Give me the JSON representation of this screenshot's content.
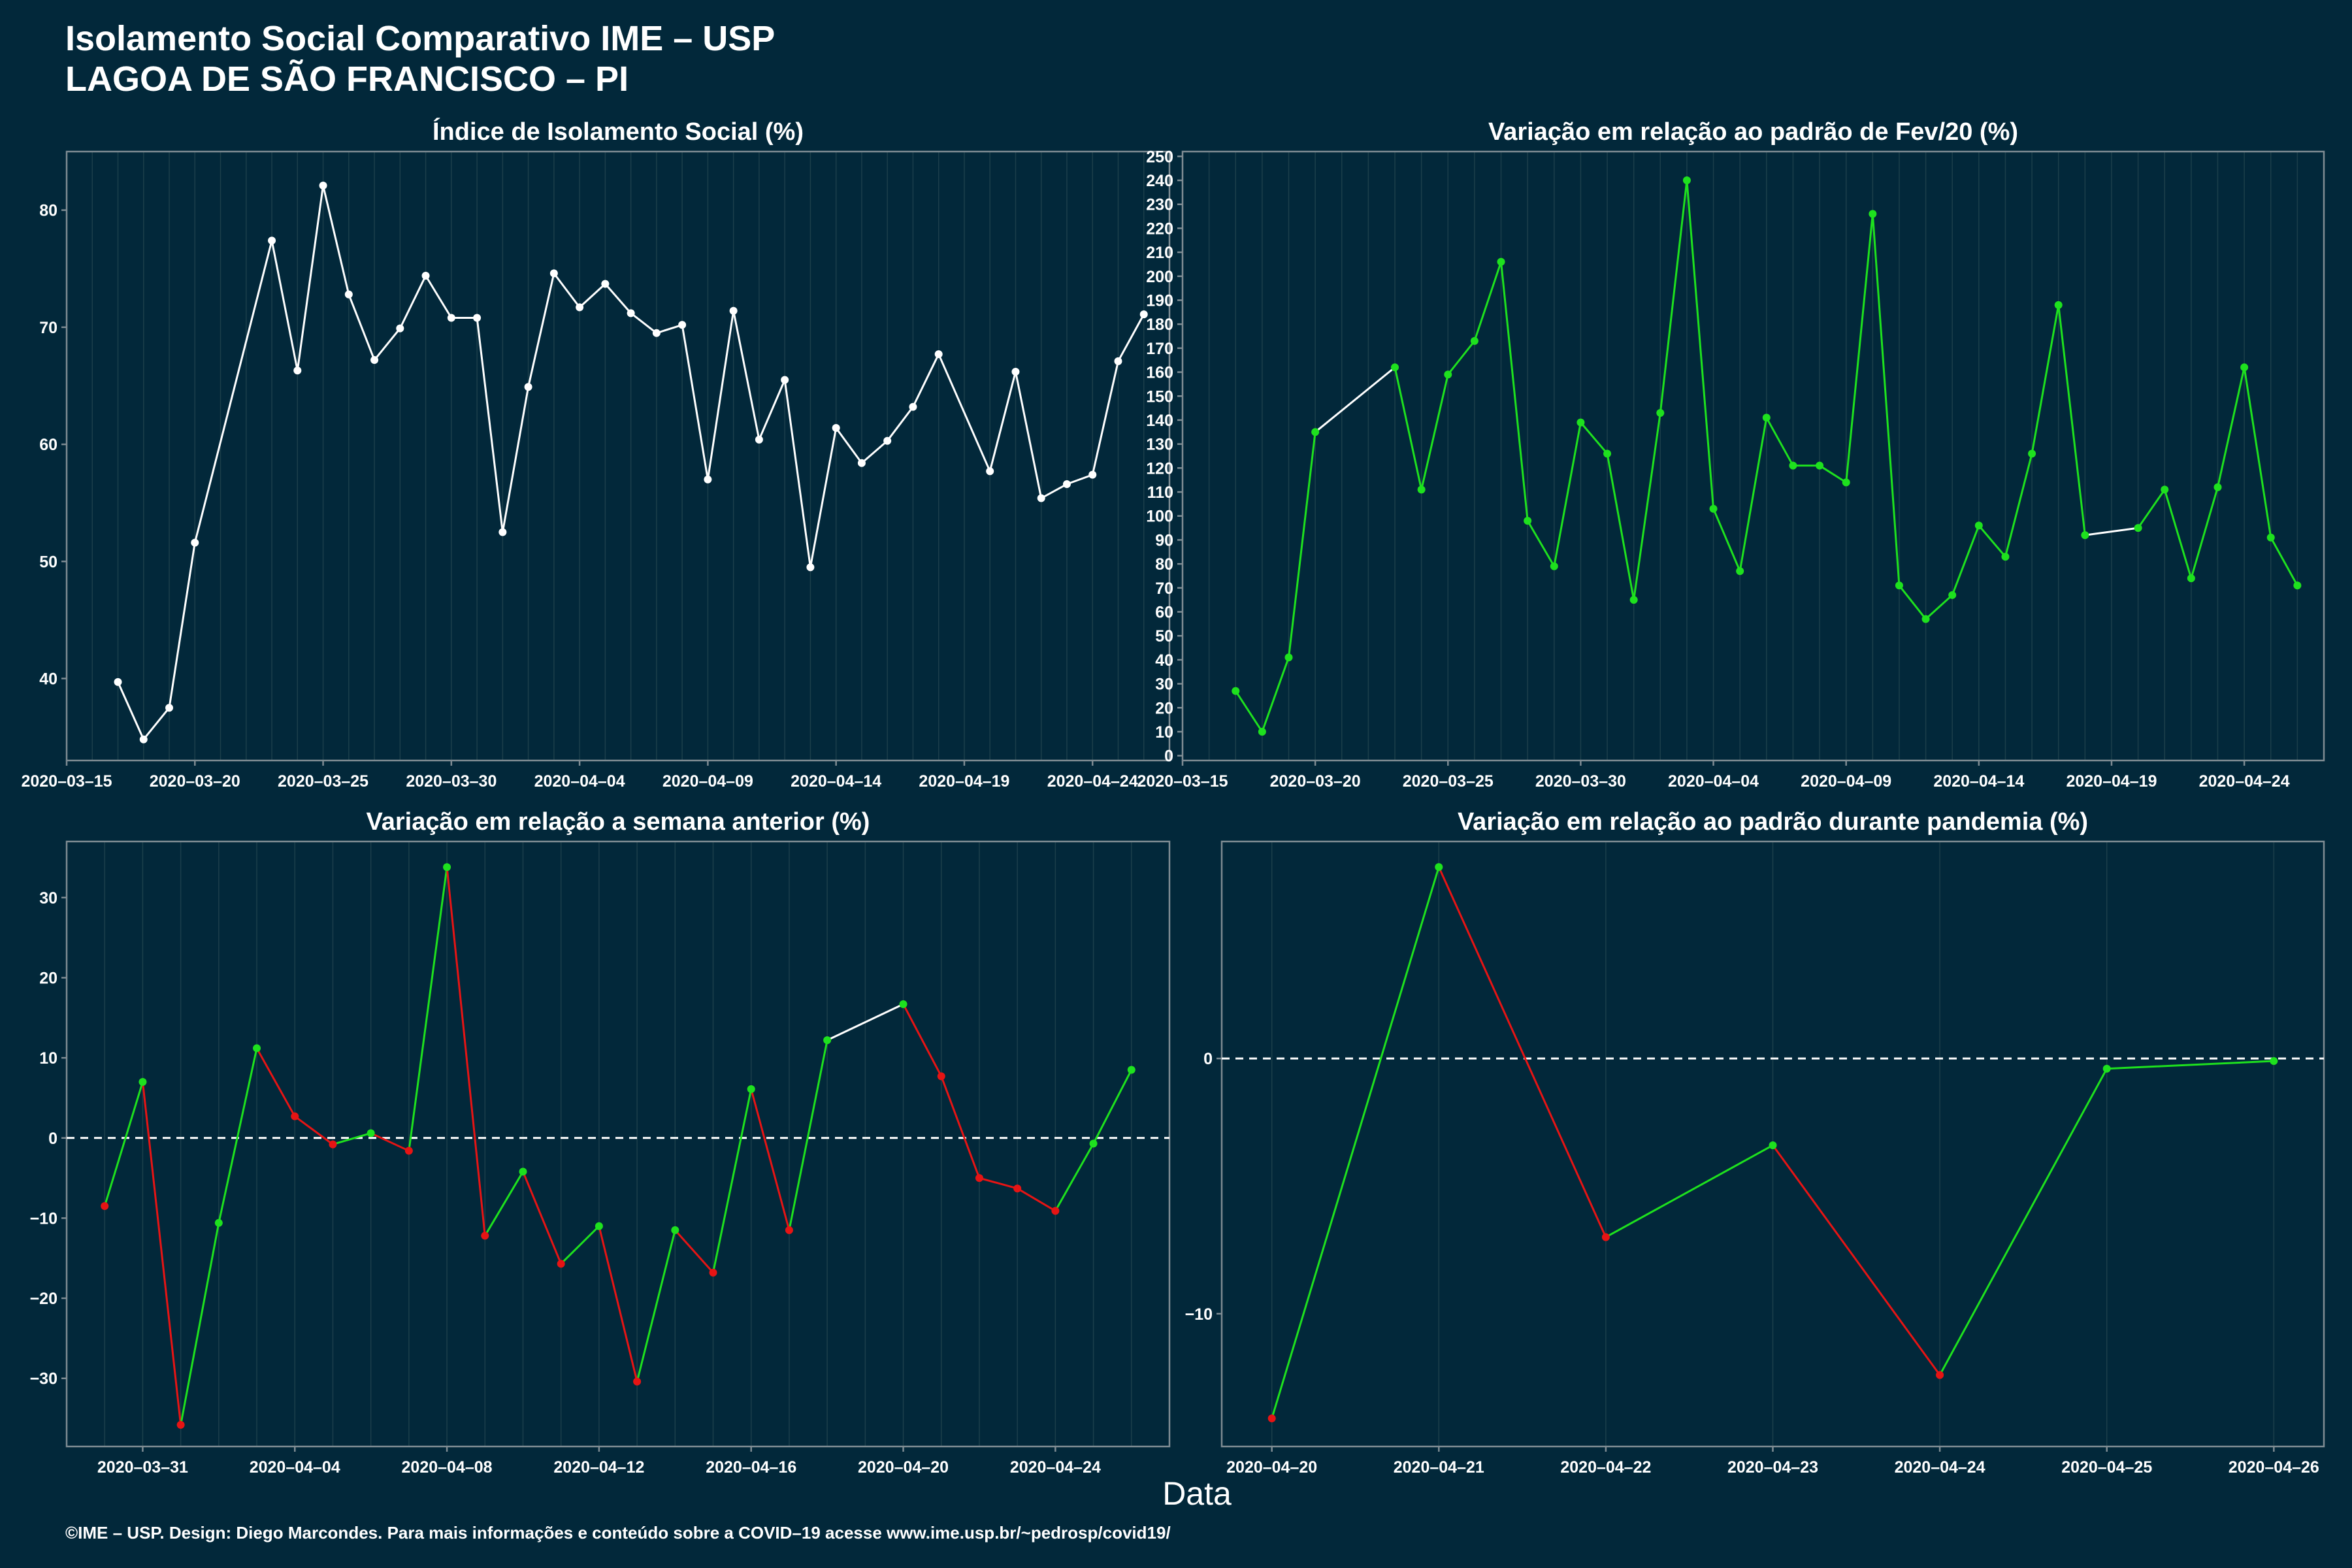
{
  "title": {
    "line1": "Isolamento Social Comparativo IME – USP",
    "line2": "LAGOA DE SÃO FRANCISCO – PI"
  },
  "xlabel": "Data",
  "footer": "©IME – USP. Design: Diego Marcondes. Para mais informações e conteúdo sobre a COVID–19 acesse www.ime.usp.br/~pedrosp/covid19/",
  "colors": {
    "background": "#02283a",
    "panel_border": "#7f8c93",
    "grid": "#1c3f4b",
    "white": "#ffffff",
    "green": "#1ee11e",
    "red": "#e61414"
  },
  "chart_data": [
    {
      "id": "isolamento",
      "type": "line",
      "title": "Índice de Isolamento Social (%)",
      "x_type": "date",
      "xlim": [
        "2020-03-15",
        "2020-04-27"
      ],
      "x_ticks": [
        "2020-03-15",
        "2020-03-20",
        "2020-03-25",
        "2020-03-30",
        "2020-04-04",
        "2020-04-09",
        "2020-04-14",
        "2020-04-19",
        "2020-04-24"
      ],
      "ylim": [
        33,
        85
      ],
      "y_ticks": [
        40,
        50,
        60,
        70,
        80
      ],
      "point_color": "white",
      "points": [
        [
          "2020-03-17",
          39.7
        ],
        [
          "2020-03-18",
          34.8
        ],
        [
          "2020-03-19",
          37.5
        ],
        [
          "2020-03-20",
          51.6
        ],
        [
          "2020-03-23",
          77.4
        ],
        [
          "2020-03-24",
          66.3
        ],
        [
          "2020-03-25",
          82.1
        ],
        [
          "2020-03-26",
          72.8
        ],
        [
          "2020-03-27",
          67.2
        ],
        [
          "2020-03-28",
          69.9
        ],
        [
          "2020-03-29",
          74.4
        ],
        [
          "2020-03-30",
          70.8
        ],
        [
          "2020-03-31",
          70.8
        ],
        [
          "2020-04-01",
          52.5
        ],
        [
          "2020-04-02",
          64.9
        ],
        [
          "2020-04-03",
          74.6
        ],
        [
          "2020-04-04",
          71.7
        ],
        [
          "2020-04-05",
          73.7
        ],
        [
          "2020-04-06",
          71.2
        ],
        [
          "2020-04-07",
          69.5
        ],
        [
          "2020-04-08",
          70.2
        ],
        [
          "2020-04-09",
          57.0
        ],
        [
          "2020-04-10",
          71.4
        ],
        [
          "2020-04-11",
          60.4
        ],
        [
          "2020-04-12",
          65.5
        ],
        [
          "2020-04-13",
          49.5
        ],
        [
          "2020-04-14",
          61.4
        ],
        [
          "2020-04-15",
          58.4
        ],
        [
          "2020-04-16",
          60.3
        ],
        [
          "2020-04-17",
          63.2
        ],
        [
          "2020-04-18",
          67.7
        ],
        [
          "2020-04-20",
          57.7
        ],
        [
          "2020-04-21",
          66.2
        ],
        [
          "2020-04-22",
          55.4
        ],
        [
          "2020-04-23",
          56.6
        ],
        [
          "2020-04-24",
          57.4
        ],
        [
          "2020-04-25",
          67.1
        ],
        [
          "2020-04-26",
          71.1
        ]
      ]
    },
    {
      "id": "fev20",
      "type": "line",
      "title": "Variação em relação ao padrão de Fev/20 (%)",
      "x_type": "date",
      "xlim": [
        "2020-03-15",
        "2020-04-27"
      ],
      "x_ticks": [
        "2020-03-15",
        "2020-03-20",
        "2020-03-25",
        "2020-03-30",
        "2020-04-04",
        "2020-04-09",
        "2020-04-14",
        "2020-04-19",
        "2020-04-24"
      ],
      "ylim": [
        -2,
        252
      ],
      "y_ticks": [
        0,
        10,
        20,
        30,
        40,
        50,
        60,
        70,
        80,
        90,
        100,
        110,
        120,
        130,
        140,
        150,
        160,
        170,
        180,
        190,
        200,
        210,
        220,
        230,
        240,
        250
      ],
      "point_color": "green",
      "points": [
        [
          "2020-03-17",
          27
        ],
        [
          "2020-03-18",
          10
        ],
        [
          "2020-03-19",
          41
        ],
        [
          "2020-03-20",
          135
        ],
        [
          "2020-03-23",
          162
        ],
        [
          "2020-03-24",
          111
        ],
        [
          "2020-03-25",
          159
        ],
        [
          "2020-03-26",
          173
        ],
        [
          "2020-03-27",
          206
        ],
        [
          "2020-03-28",
          98
        ],
        [
          "2020-03-29",
          79
        ],
        [
          "2020-03-30",
          139
        ],
        [
          "2020-03-31",
          126
        ],
        [
          "2020-04-01",
          65
        ],
        [
          "2020-04-02",
          143
        ],
        [
          "2020-04-03",
          240
        ],
        [
          "2020-04-04",
          103
        ],
        [
          "2020-04-05",
          77
        ],
        [
          "2020-04-06",
          141
        ],
        [
          "2020-04-07",
          121
        ],
        [
          "2020-04-08",
          121
        ],
        [
          "2020-04-09",
          114
        ],
        [
          "2020-04-10",
          226
        ],
        [
          "2020-04-11",
          71
        ],
        [
          "2020-04-12",
          57
        ],
        [
          "2020-04-13",
          67
        ],
        [
          "2020-04-14",
          96
        ],
        [
          "2020-04-15",
          83
        ],
        [
          "2020-04-16",
          126
        ],
        [
          "2020-04-17",
          188
        ],
        [
          "2020-04-18",
          92
        ],
        [
          "2020-04-20",
          95
        ],
        [
          "2020-04-21",
          111
        ],
        [
          "2020-04-22",
          74
        ],
        [
          "2020-04-23",
          112
        ],
        [
          "2020-04-24",
          162
        ],
        [
          "2020-04-25",
          91
        ],
        [
          "2020-04-26",
          71
        ]
      ]
    },
    {
      "id": "semana",
      "type": "line",
      "title": "Variação em relação a semana anterior (%)",
      "x_type": "date",
      "xlim": [
        "2020-03-29",
        "2020-04-27"
      ],
      "x_ticks": [
        "2020-03-31",
        "2020-04-04",
        "2020-04-08",
        "2020-04-12",
        "2020-04-16",
        "2020-04-20",
        "2020-04-24"
      ],
      "ylim": [
        -38.5,
        37
      ],
      "y_ticks": [
        -30,
        -20,
        -10,
        0,
        10,
        20,
        30
      ],
      "zero_line": true,
      "points": [
        [
          "2020-03-30",
          -8.5
        ],
        [
          "2020-03-31",
          7.0
        ],
        [
          "2020-04-01",
          -35.8
        ],
        [
          "2020-04-02",
          -10.6
        ],
        [
          "2020-04-03",
          11.2
        ],
        [
          "2020-04-04",
          2.7
        ],
        [
          "2020-04-05",
          -0.8
        ],
        [
          "2020-04-06",
          0.6
        ],
        [
          "2020-04-07",
          -1.6
        ],
        [
          "2020-04-08",
          33.8
        ],
        [
          "2020-04-09",
          -12.2
        ],
        [
          "2020-04-10",
          -4.2
        ],
        [
          "2020-04-11",
          -15.7
        ],
        [
          "2020-04-12",
          -11.0
        ],
        [
          "2020-04-13",
          -30.4
        ],
        [
          "2020-04-14",
          -11.5
        ],
        [
          "2020-04-15",
          -16.8
        ],
        [
          "2020-04-16",
          6.1
        ],
        [
          "2020-04-17",
          -11.5
        ],
        [
          "2020-04-18",
          12.2
        ],
        [
          "2020-04-20",
          16.7
        ],
        [
          "2020-04-21",
          7.7
        ],
        [
          "2020-04-22",
          -5.0
        ],
        [
          "2020-04-23",
          -6.3
        ],
        [
          "2020-04-24",
          -9.1
        ],
        [
          "2020-04-25",
          -0.7
        ],
        [
          "2020-04-26",
          8.5
        ]
      ]
    },
    {
      "id": "pandemia",
      "type": "line",
      "title": "Variação em relação ao padrão durante pandemia (%)",
      "x_type": "date",
      "xlim": [
        "2020-04-19.7",
        "2020-04-26.3"
      ],
      "x_ticks": [
        "2020-04-20",
        "2020-04-21",
        "2020-04-22",
        "2020-04-23",
        "2020-04-24",
        "2020-04-25",
        "2020-04-26"
      ],
      "ylim": [
        -15.2,
        8.5
      ],
      "y_ticks": [
        -10,
        0
      ],
      "zero_line": true,
      "points": [
        [
          "2020-04-20",
          -14.1
        ],
        [
          "2020-04-21",
          7.5
        ],
        [
          "2020-04-22",
          -7.0
        ],
        [
          "2020-04-23",
          -3.4
        ],
        [
          "2020-04-24",
          -12.4
        ],
        [
          "2020-04-25",
          -0.4
        ],
        [
          "2020-04-26",
          -0.1
        ]
      ]
    }
  ]
}
